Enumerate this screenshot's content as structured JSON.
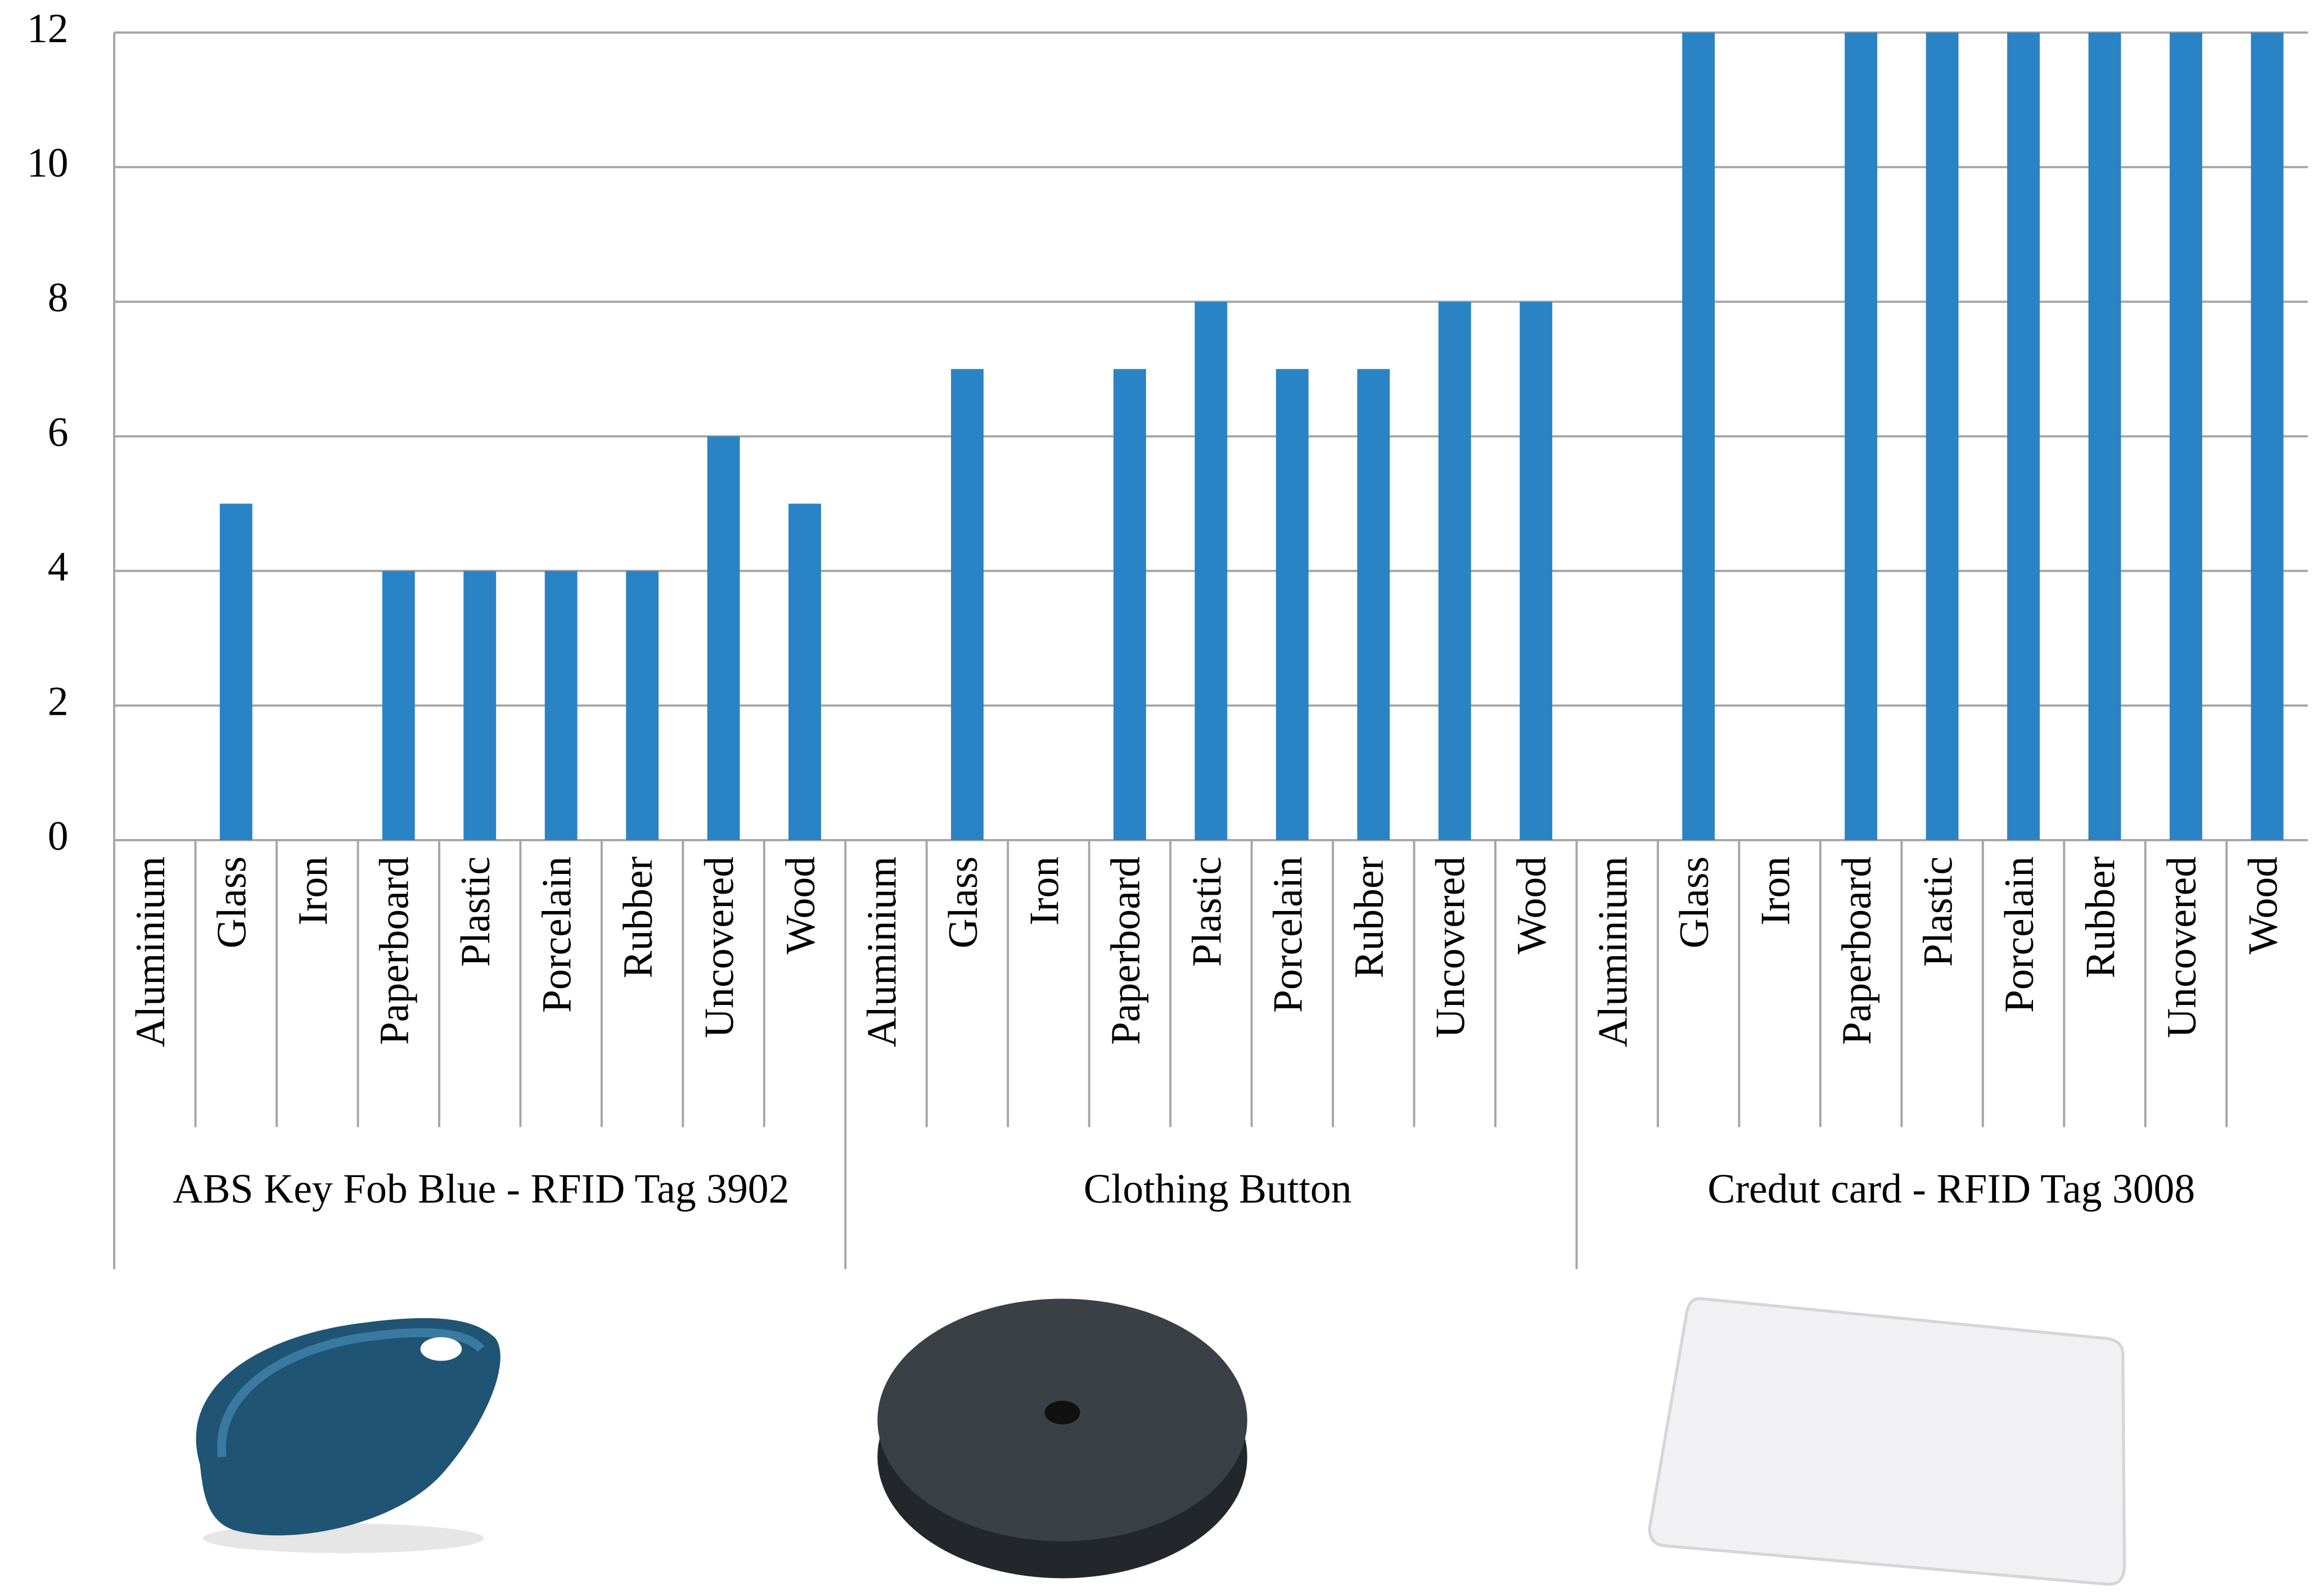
{
  "chart_data": {
    "type": "bar",
    "categories": [
      "Aluminium",
      "Glass",
      "Iron",
      "Paperboard",
      "Plastic",
      "Porcelain",
      "Rubber",
      "Uncovered",
      "Wood",
      "Aluminium",
      "Glass",
      "Iron",
      "Paperboard",
      "Plastic",
      "Porcelain",
      "Rubber",
      "Uncovered",
      "Wood",
      "Aluminium",
      "Glass",
      "Iron",
      "Paperboard",
      "Plastic",
      "Porcelain",
      "Rubber",
      "Uncovered",
      "Wood"
    ],
    "groups": [
      "ABS Key Fob Blue - RFID Tag 3902",
      "Clothing Button",
      "Credut card - RFID Tag 3008"
    ],
    "values": [
      0,
      5,
      0,
      4,
      4,
      4,
      4,
      6,
      5,
      0,
      7,
      0,
      7,
      8,
      7,
      7,
      8,
      8,
      0,
      12,
      0,
      12,
      12,
      12,
      12,
      12,
      12
    ],
    "color": "#2a83c4",
    "ylim": [
      0,
      12
    ],
    "yticks": [
      0,
      2,
      4,
      6,
      8,
      10,
      12
    ],
    "grid": true
  }
}
